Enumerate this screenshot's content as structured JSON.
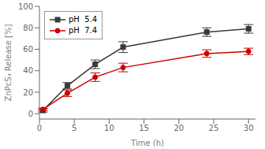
{
  "chart_data": {
    "type": "line",
    "x": [
      0.5,
      4,
      8,
      12,
      24,
      30
    ],
    "series": [
      {
        "name": "pH  5.4",
        "color": "#3a3a3a",
        "marker": "square",
        "values": [
          3,
          26,
          46,
          62,
          76,
          79
        ],
        "errors": [
          1.5,
          3,
          4,
          5,
          4,
          4
        ]
      },
      {
        "name": "pH  7.4",
        "color": "#cc0000",
        "marker": "circle",
        "values": [
          4,
          19,
          34,
          43,
          56,
          58
        ],
        "errors": [
          1.0,
          3,
          4,
          4,
          3.5,
          3
        ]
      }
    ],
    "xlabel": "Time (h)",
    "ylabel": "ZnPcS₄ Release [%]",
    "xlim": [
      0,
      31
    ],
    "ylim": [
      -5,
      100
    ],
    "xticks": [
      0,
      5,
      10,
      15,
      20,
      25,
      30
    ],
    "yticks": [
      0,
      20,
      40,
      60,
      80,
      100
    ],
    "grid": false,
    "legend": "upper left"
  }
}
